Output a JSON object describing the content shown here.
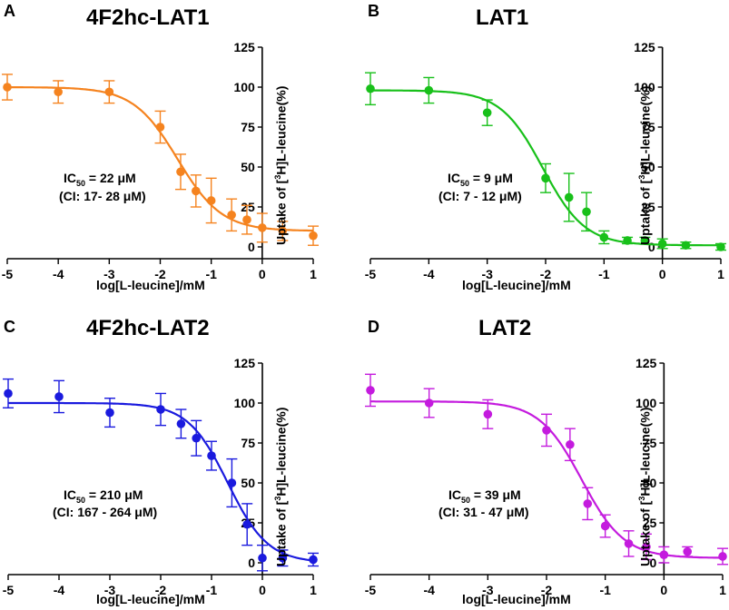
{
  "chart_data": [
    {
      "type": "scatter",
      "panel_label": "A",
      "title": "4F2hc-LAT1",
      "color": "#F5831F",
      "ic50_value": "22",
      "ic50_unit": "μM",
      "ci_text": "(CI: 17- 28 μM)",
      "xlabel": "log[L-leucine]/mM",
      "ylabel_pre": "Uptake of [",
      "ylabel_sup": "3",
      "ylabel_post": "H]L-leucine(%)",
      "xlim": [
        -5,
        1
      ],
      "ylim": [
        0,
        125
      ],
      "x_ticks": [
        -5,
        -4,
        -3,
        -2,
        -1,
        0,
        1
      ],
      "y_ticks": [
        0,
        25,
        50,
        75,
        100,
        125
      ],
      "x": [
        -5,
        -4,
        -3,
        -2,
        -1.6,
        -1.3,
        -1,
        -0.6,
        -0.3,
        0,
        0.4,
        1
      ],
      "y": [
        100,
        97,
        97,
        75,
        47,
        35,
        29,
        20,
        17,
        12,
        10,
        7
      ],
      "err": [
        8,
        7,
        7,
        10,
        11,
        10,
        14,
        10,
        9,
        9,
        6,
        6
      ],
      "fit": {
        "top": 100,
        "bottom": 10,
        "logIC50": -1.66,
        "hill": 1.0
      }
    },
    {
      "type": "scatter",
      "panel_label": "B",
      "title": "LAT1",
      "color": "#18C01A",
      "ic50_value": "9",
      "ic50_unit": "μM",
      "ci_text": "(CI: 7 - 12 μM)",
      "xlabel": "log[L-leucine]/mM",
      "ylabel_pre": "Uptake of [",
      "ylabel_sup": "3",
      "ylabel_post": "H]L-leucine(%)",
      "xlim": [
        -5,
        1
      ],
      "ylim": [
        0,
        125
      ],
      "x_ticks": [
        -5,
        -4,
        -3,
        -2,
        -1,
        0,
        1
      ],
      "y_ticks": [
        0,
        25,
        50,
        75,
        100,
        125
      ],
      "x": [
        -5,
        -4,
        -3,
        -2,
        -1.6,
        -1.3,
        -1,
        -0.6,
        -0.3,
        0,
        0.4,
        1
      ],
      "y": [
        99,
        98,
        84,
        43,
        31,
        22,
        6,
        4,
        4,
        2,
        1,
        0
      ],
      "err": [
        10,
        8,
        8,
        9,
        15,
        12,
        4,
        2,
        2,
        3,
        2,
        2
      ],
      "fit": {
        "top": 98,
        "bottom": 1,
        "logIC50": -2.05,
        "hill": 1.2
      }
    },
    {
      "type": "scatter",
      "panel_label": "C",
      "title": "4F2hc-LAT2",
      "color": "#1A1ADE",
      "ic50_value": "210",
      "ic50_unit": "μM",
      "ci_text": "(CI: 167 - 264 μM)",
      "xlabel": "log[L-leucine]/mM",
      "ylabel_pre": "Uptake of [",
      "ylabel_sup": "3",
      "ylabel_post": "H]L-leucine(%)",
      "xlim": [
        -5,
        1
      ],
      "ylim": [
        0,
        125
      ],
      "x_ticks": [
        -5,
        -4,
        -3,
        -2,
        -1,
        0,
        1
      ],
      "y_ticks": [
        0,
        25,
        50,
        75,
        100,
        125
      ],
      "x": [
        -5,
        -4,
        -3,
        -2,
        -1.6,
        -1.3,
        -1,
        -0.6,
        -0.3,
        0,
        0.4,
        1
      ],
      "y": [
        106,
        104,
        94,
        96,
        87,
        78,
        67,
        50,
        24,
        3,
        3,
        2
      ],
      "err": [
        9,
        10,
        9,
        10,
        9,
        11,
        9,
        15,
        13,
        8,
        5,
        4
      ],
      "fit": {
        "top": 100,
        "bottom": 0,
        "logIC50": -0.68,
        "hill": 1.1
      }
    },
    {
      "type": "scatter",
      "panel_label": "D",
      "title": "LAT2",
      "color": "#C41BDE",
      "ic50_value": "39",
      "ic50_unit": "μM",
      "ci_text": "(CI: 31 - 47 μM)",
      "xlabel": "log[L-leucine]/mM",
      "ylabel_pre": "Uptake of [",
      "ylabel_sup": "3",
      "ylabel_post": "H]L-leucine(%)",
      "xlim": [
        -5,
        1
      ],
      "ylim": [
        0,
        125
      ],
      "x_ticks": [
        -5,
        -4,
        -3,
        -2,
        -1,
        0,
        1
      ],
      "y_ticks": [
        0,
        25,
        50,
        75,
        100,
        125
      ],
      "x": [
        -5,
        -4,
        -3,
        -2,
        -1.6,
        -1.3,
        -1,
        -0.6,
        -0.3,
        0,
        0.4,
        1
      ],
      "y": [
        108,
        100,
        93,
        83,
        74,
        37,
        23,
        12,
        10,
        5,
        7,
        4
      ],
      "err": [
        10,
        9,
        9,
        10,
        10,
        10,
        7,
        8,
        8,
        5,
        3,
        5
      ],
      "fit": {
        "top": 101,
        "bottom": 3,
        "logIC50": -1.4,
        "hill": 1.2
      }
    }
  ]
}
